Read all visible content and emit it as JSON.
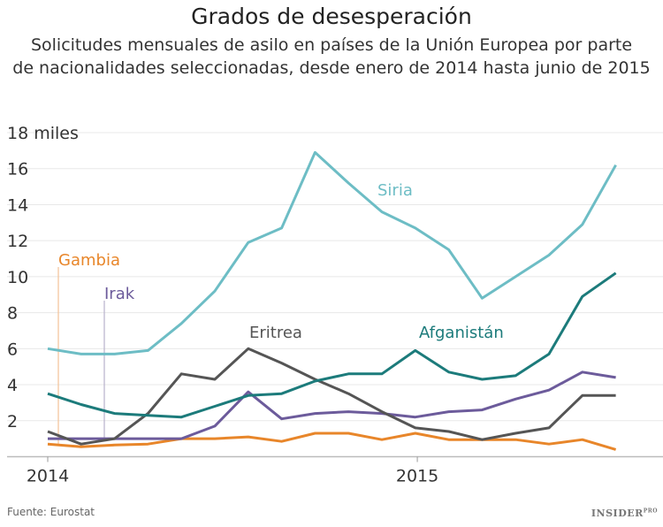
{
  "title": "Grados de desesperación",
  "subtitle_line1": "Solicitudes mensuales de asilo en países de la Unión Europea por parte",
  "subtitle_line2": "de nacionalidades seleccionadas, desde enero de 2014 hasta junio de 2015",
  "source": "Fuente: Eurostat",
  "logo": {
    "text": "INSIDER",
    "sup": "PRO"
  },
  "chart_data": {
    "type": "line",
    "x": [
      "2014-01",
      "2014-02",
      "2014-03",
      "2014-04",
      "2014-05",
      "2014-06",
      "2014-07",
      "2014-08",
      "2014-09",
      "2014-10",
      "2014-11",
      "2014-12",
      "2015-01",
      "2015-02",
      "2015-03",
      "2015-04",
      "2015-05",
      "2015-06"
    ],
    "x_tick_labels": [
      {
        "label": "2014",
        "index": 0
      },
      {
        "label": "2015",
        "index": 12
      }
    ],
    "y_ticks": [
      2,
      4,
      6,
      8,
      10,
      12,
      14,
      16,
      18
    ],
    "y_top_label": "18 miles",
    "ylim": [
      0,
      18
    ],
    "grid": true,
    "series": [
      {
        "name": "Siria",
        "color": "#6dbdc5",
        "values": [
          6.0,
          5.7,
          5.7,
          5.9,
          7.4,
          9.2,
          11.9,
          12.7,
          16.9,
          15.2,
          13.6,
          12.7,
          11.5,
          8.8,
          10.0,
          11.2,
          12.9,
          16.2
        ]
      },
      {
        "name": "Afganistán",
        "color": "#1c7b7b",
        "values": [
          3.5,
          2.9,
          2.4,
          2.3,
          2.2,
          2.8,
          3.4,
          3.5,
          4.2,
          4.6,
          4.6,
          5.9,
          4.7,
          4.3,
          4.5,
          5.7,
          8.9,
          10.2
        ]
      },
      {
        "name": "Eritrea",
        "color": "#555555",
        "values": [
          1.4,
          0.7,
          1.0,
          2.4,
          4.6,
          4.3,
          6.0,
          5.2,
          4.3,
          3.5,
          2.5,
          1.6,
          1.4,
          0.95,
          1.3,
          1.6,
          3.4,
          3.4
        ]
      },
      {
        "name": "Irak",
        "color": "#6c5b9b",
        "values": [
          1.0,
          1.0,
          1.0,
          1.0,
          1.0,
          1.7,
          3.6,
          2.1,
          2.4,
          2.5,
          2.4,
          2.2,
          2.5,
          2.6,
          3.2,
          3.7,
          4.7,
          4.4
        ]
      },
      {
        "name": "Gambia",
        "color": "#e8862a",
        "values": [
          0.7,
          0.55,
          0.65,
          0.7,
          1.0,
          1.0,
          1.1,
          0.85,
          1.3,
          1.3,
          0.95,
          1.3,
          0.95,
          0.95,
          0.95,
          0.7,
          0.95,
          0.4
        ]
      }
    ]
  }
}
